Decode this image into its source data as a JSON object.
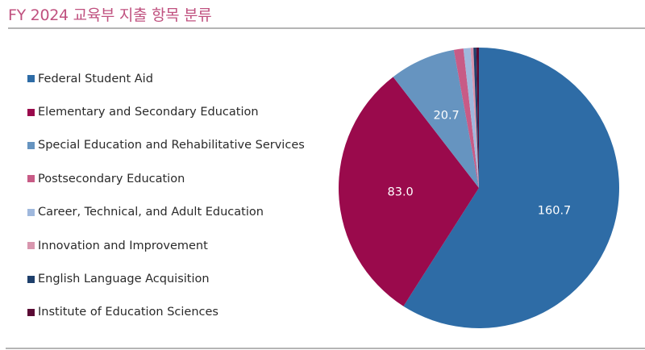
{
  "title": "FY 2024 교육부 지출 항목 분류",
  "legend": [
    {
      "label": "Federal Student Aid",
      "color": "#2e6ca6"
    },
    {
      "label": "Elementary and Secondary Education",
      "color": "#9a0a4c"
    },
    {
      "label": "Special Education and Rehabilitative Services",
      "color": "#6694c0"
    },
    {
      "label": "Postsecondary Education",
      "color": "#c85b86"
    },
    {
      "label": "Career, Technical, and Adult Education",
      "color": "#9fb8dd"
    },
    {
      "label": "Innovation and Improvement",
      "color": "#d896ae"
    },
    {
      "label": "English Language Acquisition",
      "color": "#1e3f6b"
    },
    {
      "label": "Institute of Education Sciences",
      "color": "#5a0a34"
    }
  ],
  "chart_data": {
    "type": "pie",
    "title": "FY 2024 교육부 지출 항목 분류",
    "categories": [
      "Federal Student Aid",
      "Elementary and Secondary Education",
      "Special Education and Rehabilitative Services",
      "Postsecondary Education",
      "Career, Technical, and Adult Education",
      "Innovation and Improvement",
      "English Language Acquisition",
      "Institute of Education Sciences"
    ],
    "values": [
      160.7,
      83.0,
      20.7,
      3.0,
      2.2,
      0.9,
      0.9,
      0.8
    ],
    "data_labels": [
      "160.7",
      "83.0",
      "20.7",
      "",
      "",
      "",
      "",
      ""
    ],
    "colors": [
      "#2e6ca6",
      "#9a0a4c",
      "#6694c0",
      "#c85b86",
      "#9fb8dd",
      "#d896ae",
      "#1e3f6b",
      "#5a0a34"
    ],
    "start_angle": "12 o'clock",
    "direction": "clockwise",
    "legend_position": "left",
    "label_color": "#ffffff"
  }
}
